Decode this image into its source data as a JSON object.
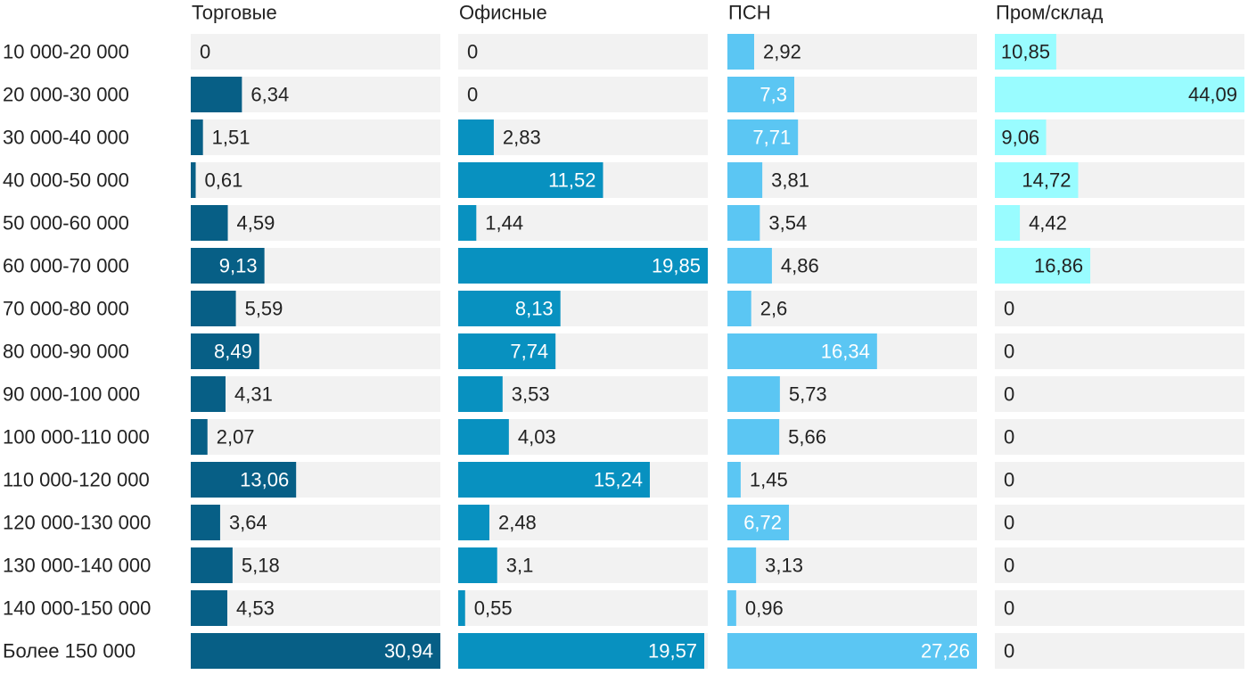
{
  "chart_data": {
    "type": "bar",
    "orientation": "horizontal",
    "layout": "small-multiples",
    "title": "",
    "categories": [
      "10 000-20 000",
      "20 000-30 000",
      "30 000-40 000",
      "40 000-50 000",
      "50 000-60 000",
      "60 000-70 000",
      "70 000-80 000",
      "80 000-90 000",
      "90 000-100 000",
      "100 000-110 000",
      "110 000-120 000",
      "120 000-130 000",
      "130 000-140 000",
      "140 000-150 000",
      "Более 150 000"
    ],
    "series": [
      {
        "name": "Торговые",
        "color": "#075f86",
        "max": 30.94,
        "values": [
          0,
          6.34,
          1.51,
          0.61,
          4.59,
          9.13,
          5.59,
          8.49,
          4.31,
          2.07,
          13.06,
          3.64,
          5.18,
          4.53,
          30.94
        ],
        "labels": [
          "0",
          "6,34",
          "1,51",
          "0,61",
          "4,59",
          "9,13",
          "5,59",
          "8,49",
          "4,31",
          "2,07",
          "13,06",
          "3,64",
          "5,18",
          "4,53",
          "30,94"
        ]
      },
      {
        "name": "Офисные",
        "color": "#0891c0",
        "max": 19.85,
        "values": [
          0,
          0,
          2.83,
          11.52,
          1.44,
          19.85,
          8.13,
          7.74,
          3.53,
          4.03,
          15.24,
          2.48,
          3.1,
          0.55,
          19.57
        ],
        "labels": [
          "0",
          "0",
          "2,83",
          "11,52",
          "1,44",
          "19,85",
          "8,13",
          "7,74",
          "3,53",
          "4,03",
          "15,24",
          "2,48",
          "3,1",
          "0,55",
          "19,57"
        ]
      },
      {
        "name": "ПСН",
        "color": "#5bc6f3",
        "max": 27.26,
        "values": [
          2.92,
          7.3,
          7.71,
          3.81,
          3.54,
          4.86,
          2.6,
          16.34,
          5.73,
          5.66,
          1.45,
          6.72,
          3.13,
          0.96,
          27.26
        ],
        "labels": [
          "2,92",
          "7,3",
          "7,71",
          "3,81",
          "3,54",
          "4,86",
          "2,6",
          "16,34",
          "5,73",
          "5,66",
          "1,45",
          "6,72",
          "3,13",
          "0,96",
          "27,26"
        ]
      },
      {
        "name": "Пром/склад",
        "color": "#99fcff",
        "max": 44.09,
        "values": [
          10.85,
          44.09,
          9.06,
          14.72,
          4.42,
          16.86,
          0,
          0,
          0,
          0,
          0,
          0,
          0,
          0,
          0
        ],
        "labels": [
          "10,85",
          "44,09",
          "9,06",
          "14,72",
          "4,42",
          "16,86",
          "0",
          "0",
          "0",
          "0",
          "0",
          "0",
          "0",
          "0",
          "0"
        ]
      }
    ],
    "background_color": "#f2f2f2",
    "legend": "none",
    "grid": false
  }
}
